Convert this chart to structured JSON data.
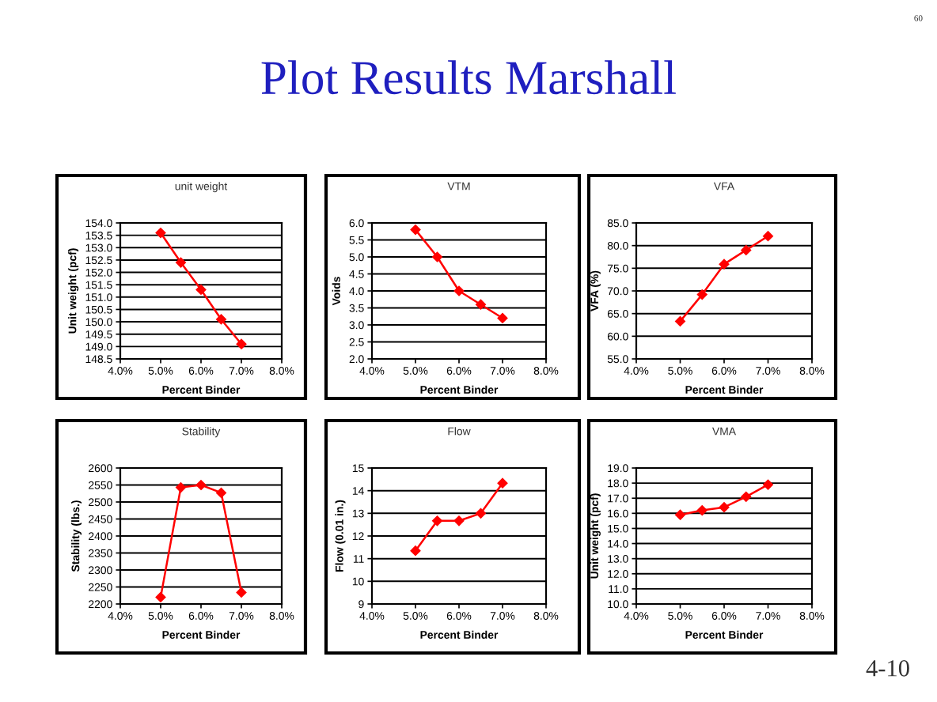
{
  "chart_data": [
    {
      "type": "other",
      "title": "Plot Results Marshall",
      "annotations": [
        "60",
        "4-10"
      ]
    },
    {
      "type": "line",
      "title": "unit weight",
      "xlabel": "Percent Binder",
      "ylabel": "Unit weight (pcf)",
      "x": [
        5.0,
        5.5,
        6.0,
        6.5,
        7.0
      ],
      "series": [
        {
          "color": "#ff0000",
          "values": [
            153.6,
            152.4,
            151.3,
            150.1,
            149.1
          ]
        }
      ],
      "xlim": [
        4,
        8
      ],
      "xticks": [
        {
          "value": 4,
          "label": "4.0%"
        },
        {
          "value": 5,
          "label": "5.0%"
        },
        {
          "value": 6,
          "label": "6.0%"
        },
        {
          "value": 7,
          "label": "7.0%"
        },
        {
          "value": 8,
          "label": "8.0%"
        }
      ],
      "ylim": [
        148.5,
        154
      ],
      "yticks": [
        {
          "value": 148.5,
          "label": "148.5"
        },
        {
          "value": 149,
          "label": "149.0"
        },
        {
          "value": 149.5,
          "label": "149.5"
        },
        {
          "value": 150,
          "label": "150.0"
        },
        {
          "value": 150.5,
          "label": "150.5"
        },
        {
          "value": 151,
          "label": "151.0"
        },
        {
          "value": 151.5,
          "label": "151.5"
        },
        {
          "value": 152,
          "label": "152.0"
        },
        {
          "value": 152.5,
          "label": "152.5"
        },
        {
          "value": 153,
          "label": "153.0"
        },
        {
          "value": 153.5,
          "label": "153.5"
        },
        {
          "value": 154,
          "label": "154.0"
        }
      ],
      "grid": "y",
      "marker": "diamond",
      "line_style": "solid"
    },
    {
      "type": "line",
      "title": "VTM",
      "xlabel": "Percent Binder",
      "ylabel": "Voids",
      "x": [
        5.0,
        5.5,
        6.0,
        6.5,
        7.0
      ],
      "series": [
        {
          "color": "#ff0000",
          "values": [
            5.8,
            5.0,
            4.0,
            3.6,
            3.2
          ]
        }
      ],
      "xlim": [
        4,
        8
      ],
      "xticks": [
        {
          "value": 4,
          "label": "4.0%"
        },
        {
          "value": 5,
          "label": "5.0%"
        },
        {
          "value": 6,
          "label": "6.0%"
        },
        {
          "value": 7,
          "label": "7.0%"
        },
        {
          "value": 8,
          "label": "8.0%"
        }
      ],
      "ylim": [
        2,
        6
      ],
      "yticks": [
        {
          "value": 2,
          "label": "2.0"
        },
        {
          "value": 2.5,
          "label": "2.5"
        },
        {
          "value": 3,
          "label": "3.0"
        },
        {
          "value": 3.5,
          "label": "3.5"
        },
        {
          "value": 4,
          "label": "4.0"
        },
        {
          "value": 4.5,
          "label": "4.5"
        },
        {
          "value": 5,
          "label": "5.0"
        },
        {
          "value": 5.5,
          "label": "5.5"
        },
        {
          "value": 6,
          "label": "6.0"
        }
      ],
      "grid": "y",
      "marker": "diamond",
      "line_style": "solid"
    },
    {
      "type": "line",
      "title": "VFA",
      "xlabel": "Percent Binder",
      "ylabel": "VFA (%)",
      "x": [
        5.0,
        5.5,
        6.0,
        6.5,
        7.0
      ],
      "series": [
        {
          "color": "#ff0000",
          "values": [
            63.3,
            69.2,
            75.9,
            79.0,
            82.1
          ]
        }
      ],
      "xlim": [
        4,
        8
      ],
      "xticks": [
        {
          "value": 4,
          "label": "4.0%"
        },
        {
          "value": 5,
          "label": "5.0%"
        },
        {
          "value": 6,
          "label": "6.0%"
        },
        {
          "value": 7,
          "label": "7.0%"
        },
        {
          "value": 8,
          "label": "8.0%"
        }
      ],
      "ylim": [
        55,
        85
      ],
      "yticks": [
        {
          "value": 55,
          "label": "55.0"
        },
        {
          "value": 60,
          "label": "60.0"
        },
        {
          "value": 65,
          "label": "65.0"
        },
        {
          "value": 70,
          "label": "70.0"
        },
        {
          "value": 75,
          "label": "75.0"
        },
        {
          "value": 80,
          "label": "80.0"
        },
        {
          "value": 85,
          "label": "85.0"
        }
      ],
      "grid": "y",
      "marker": "diamond",
      "line_style": "solid"
    },
    {
      "type": "line",
      "title": "Stability",
      "xlabel": "Percent Binder",
      "ylabel": "Stability (lbs.)",
      "x": [
        5.0,
        5.5,
        6.0,
        6.5,
        7.0
      ],
      "series": [
        {
          "color": "#ff0000",
          "values": [
            2220,
            2543,
            2550,
            2527,
            2234
          ]
        }
      ],
      "xlim": [
        4,
        8
      ],
      "xticks": [
        {
          "value": 4,
          "label": "4.0%"
        },
        {
          "value": 5,
          "label": "5.0%"
        },
        {
          "value": 6,
          "label": "6.0%"
        },
        {
          "value": 7,
          "label": "7.0%"
        },
        {
          "value": 8,
          "label": "8.0%"
        }
      ],
      "ylim": [
        2200,
        2600
      ],
      "yticks": [
        2200,
        2250,
        2300,
        2350,
        2400,
        2450,
        2500,
        2550,
        2600
      ],
      "grid": "y",
      "marker": "diamond",
      "line_style": "solid"
    },
    {
      "type": "line",
      "title": "Flow",
      "xlabel": "Percent Binder",
      "ylabel": "Flow (0.01 in.)",
      "x": [
        5.0,
        5.5,
        6.0,
        6.5,
        7.0
      ],
      "series": [
        {
          "color": "#ff0000",
          "values": [
            11.35,
            12.67,
            12.67,
            13.0,
            14.33
          ]
        }
      ],
      "xlim": [
        4,
        8
      ],
      "xticks": [
        {
          "value": 4,
          "label": "4.0%"
        },
        {
          "value": 5,
          "label": "5.0%"
        },
        {
          "value": 6,
          "label": "6.0%"
        },
        {
          "value": 7,
          "label": "7.0%"
        },
        {
          "value": 8,
          "label": "8.0%"
        }
      ],
      "ylim": [
        9,
        15
      ],
      "yticks": [
        9,
        10,
        11,
        12,
        13,
        14,
        15
      ],
      "grid": "y",
      "marker": "diamond",
      "line_style": "solid"
    },
    {
      "type": "line",
      "title": "VMA",
      "xlabel": "Percent Binder",
      "ylabel": "Unit weight (pcf)",
      "x": [
        5.0,
        5.5,
        6.0,
        6.5,
        7.0
      ],
      "series": [
        {
          "color": "#ff0000",
          "values": [
            15.9,
            16.2,
            16.4,
            17.1,
            17.9
          ]
        }
      ],
      "xlim": [
        4,
        8
      ],
      "xticks": [
        {
          "value": 4,
          "label": "4.0%"
        },
        {
          "value": 5,
          "label": "5.0%"
        },
        {
          "value": 6,
          "label": "6.0%"
        },
        {
          "value": 7,
          "label": "7.0%"
        },
        {
          "value": 8,
          "label": "8.0%"
        }
      ],
      "ylim": [
        10,
        19
      ],
      "yticks": [
        {
          "value": 10,
          "label": "10.0"
        },
        {
          "value": 11,
          "label": "11.0"
        },
        {
          "value": 12,
          "label": "12.0"
        },
        {
          "value": 13,
          "label": "13.0"
        },
        {
          "value": 14,
          "label": "14.0"
        },
        {
          "value": 15,
          "label": "15.0"
        },
        {
          "value": 16,
          "label": "16.0"
        },
        {
          "value": 17,
          "label": "17.0"
        },
        {
          "value": 18,
          "label": "18.0"
        },
        {
          "value": 19,
          "label": "19.0"
        }
      ],
      "grid": "y",
      "marker": "diamond",
      "line_style": "solid"
    }
  ]
}
